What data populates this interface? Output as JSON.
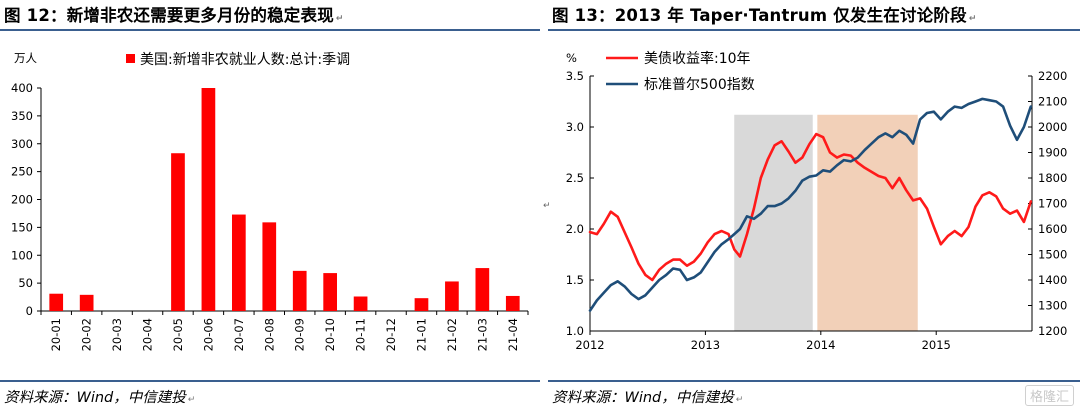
{
  "left": {
    "figure_title": "图 12：新增非农还需要更多月份的稳定表现",
    "source": "资料来源：Wind，中信建投",
    "chart_data": {
      "type": "bar",
      "title": "",
      "unit_label": "万人",
      "legend": "美国:新增非农就业人数:总计:季调",
      "categories": [
        "20-01",
        "20-02",
        "20-03",
        "20-04",
        "20-05",
        "20-06",
        "20-07",
        "20-08",
        "20-09",
        "20-10",
        "20-11",
        "20-12",
        "21-01",
        "21-02",
        "21-03",
        "21-04"
      ],
      "values": [
        31,
        29,
        0,
        0,
        283,
        400,
        173,
        159,
        72,
        68,
        26,
        0,
        23,
        53,
        77,
        27
      ],
      "ylim": [
        0,
        400
      ],
      "yticks": [
        0,
        50,
        100,
        150,
        200,
        250,
        300,
        350,
        400
      ],
      "bar_color": "#ff0000",
      "legend_position": "top"
    }
  },
  "right": {
    "figure_title": "图 13：2013 年 Taper·Tantrum 仅发生在讨论阶段",
    "source": "资料来源：Wind，中信建投",
    "watermark": "格隆汇",
    "chart_data": {
      "type": "line",
      "title": "",
      "left_unit": "%",
      "xlim": [
        2012.0,
        2015.83
      ],
      "xticks": [
        "2012",
        "2013",
        "2014",
        "2015"
      ],
      "y_left": {
        "lim": [
          1.0,
          3.5
        ],
        "ticks": [
          "1.0",
          "1.5",
          "2.0",
          "2.5",
          "3.0",
          "3.5"
        ]
      },
      "y_right": {
        "lim": [
          1200,
          2200
        ],
        "ticks": [
          "1200",
          "1300",
          "1400",
          "1500",
          "1600",
          "1700",
          "1800",
          "1900",
          "2000",
          "2100",
          "2200"
        ]
      },
      "shaded_periods": [
        {
          "x": [
            2013.25,
            2013.93
          ],
          "color": "#d9d9d9"
        },
        {
          "x": [
            2013.97,
            2014.84
          ],
          "color": "#f2d0b8"
        }
      ],
      "series": [
        {
          "name": "美债收益率:10年",
          "axis": "left",
          "color": "#ff1a1a",
          "points": [
            [
              2012.0,
              1.97
            ],
            [
              2012.06,
              1.95
            ],
            [
              2012.12,
              2.05
            ],
            [
              2012.18,
              2.17
            ],
            [
              2012.24,
              2.12
            ],
            [
              2012.3,
              1.97
            ],
            [
              2012.36,
              1.82
            ],
            [
              2012.42,
              1.66
            ],
            [
              2012.48,
              1.55
            ],
            [
              2012.54,
              1.5
            ],
            [
              2012.6,
              1.6
            ],
            [
              2012.66,
              1.66
            ],
            [
              2012.72,
              1.7
            ],
            [
              2012.78,
              1.7
            ],
            [
              2012.84,
              1.64
            ],
            [
              2012.9,
              1.68
            ],
            [
              2012.96,
              1.76
            ],
            [
              2013.02,
              1.87
            ],
            [
              2013.08,
              1.95
            ],
            [
              2013.14,
              1.98
            ],
            [
              2013.2,
              1.95
            ],
            [
              2013.25,
              1.8
            ],
            [
              2013.3,
              1.73
            ],
            [
              2013.36,
              1.95
            ],
            [
              2013.42,
              2.2
            ],
            [
              2013.48,
              2.5
            ],
            [
              2013.54,
              2.68
            ],
            [
              2013.6,
              2.82
            ],
            [
              2013.66,
              2.86
            ],
            [
              2013.72,
              2.76
            ],
            [
              2013.78,
              2.65
            ],
            [
              2013.84,
              2.7
            ],
            [
              2013.9,
              2.83
            ],
            [
              2013.96,
              2.93
            ],
            [
              2014.02,
              2.9
            ],
            [
              2014.08,
              2.75
            ],
            [
              2014.14,
              2.7
            ],
            [
              2014.2,
              2.73
            ],
            [
              2014.26,
              2.72
            ],
            [
              2014.32,
              2.65
            ],
            [
              2014.38,
              2.6
            ],
            [
              2014.44,
              2.56
            ],
            [
              2014.5,
              2.52
            ],
            [
              2014.56,
              2.5
            ],
            [
              2014.62,
              2.4
            ],
            [
              2014.68,
              2.5
            ],
            [
              2014.74,
              2.38
            ],
            [
              2014.8,
              2.28
            ],
            [
              2014.86,
              2.3
            ],
            [
              2014.92,
              2.2
            ],
            [
              2014.98,
              2.02
            ],
            [
              2015.04,
              1.85
            ],
            [
              2015.1,
              1.93
            ],
            [
              2015.16,
              1.98
            ],
            [
              2015.22,
              1.93
            ],
            [
              2015.28,
              2.02
            ],
            [
              2015.34,
              2.22
            ],
            [
              2015.4,
              2.33
            ],
            [
              2015.46,
              2.36
            ],
            [
              2015.52,
              2.32
            ],
            [
              2015.58,
              2.2
            ],
            [
              2015.64,
              2.15
            ],
            [
              2015.7,
              2.18
            ],
            [
              2015.76,
              2.07
            ],
            [
              2015.82,
              2.27
            ]
          ]
        },
        {
          "name": "标准普尔500指数",
          "axis": "right",
          "color": "#1f4e79",
          "points": [
            [
              2012.0,
              1280
            ],
            [
              2012.06,
              1320
            ],
            [
              2012.12,
              1350
            ],
            [
              2012.18,
              1380
            ],
            [
              2012.24,
              1395
            ],
            [
              2012.3,
              1375
            ],
            [
              2012.36,
              1345
            ],
            [
              2012.42,
              1325
            ],
            [
              2012.48,
              1340
            ],
            [
              2012.54,
              1370
            ],
            [
              2012.6,
              1400
            ],
            [
              2012.66,
              1420
            ],
            [
              2012.72,
              1445
            ],
            [
              2012.78,
              1440
            ],
            [
              2012.84,
              1400
            ],
            [
              2012.9,
              1410
            ],
            [
              2012.96,
              1430
            ],
            [
              2013.02,
              1470
            ],
            [
              2013.08,
              1510
            ],
            [
              2013.14,
              1540
            ],
            [
              2013.2,
              1560
            ],
            [
              2013.25,
              1580
            ],
            [
              2013.3,
              1600
            ],
            [
              2013.36,
              1650
            ],
            [
              2013.42,
              1640
            ],
            [
              2013.48,
              1660
            ],
            [
              2013.54,
              1690
            ],
            [
              2013.6,
              1690
            ],
            [
              2013.66,
              1700
            ],
            [
              2013.72,
              1720
            ],
            [
              2013.78,
              1750
            ],
            [
              2013.84,
              1790
            ],
            [
              2013.9,
              1805
            ],
            [
              2013.96,
              1810
            ],
            [
              2014.02,
              1830
            ],
            [
              2014.08,
              1825
            ],
            [
              2014.14,
              1850
            ],
            [
              2014.2,
              1870
            ],
            [
              2014.26,
              1865
            ],
            [
              2014.32,
              1880
            ],
            [
              2014.38,
              1910
            ],
            [
              2014.44,
              1935
            ],
            [
              2014.5,
              1960
            ],
            [
              2014.56,
              1975
            ],
            [
              2014.62,
              1960
            ],
            [
              2014.68,
              1985
            ],
            [
              2014.74,
              1970
            ],
            [
              2014.8,
              1935
            ],
            [
              2014.86,
              2030
            ],
            [
              2014.92,
              2055
            ],
            [
              2014.98,
              2060
            ],
            [
              2015.04,
              2030
            ],
            [
              2015.1,
              2060
            ],
            [
              2015.16,
              2080
            ],
            [
              2015.22,
              2075
            ],
            [
              2015.28,
              2090
            ],
            [
              2015.34,
              2100
            ],
            [
              2015.4,
              2110
            ],
            [
              2015.46,
              2105
            ],
            [
              2015.52,
              2100
            ],
            [
              2015.58,
              2080
            ],
            [
              2015.64,
              2005
            ],
            [
              2015.7,
              1950
            ],
            [
              2015.76,
              2000
            ],
            [
              2015.82,
              2080
            ]
          ]
        }
      ],
      "legend_position": "top-left"
    }
  },
  "center_mark": "↵"
}
